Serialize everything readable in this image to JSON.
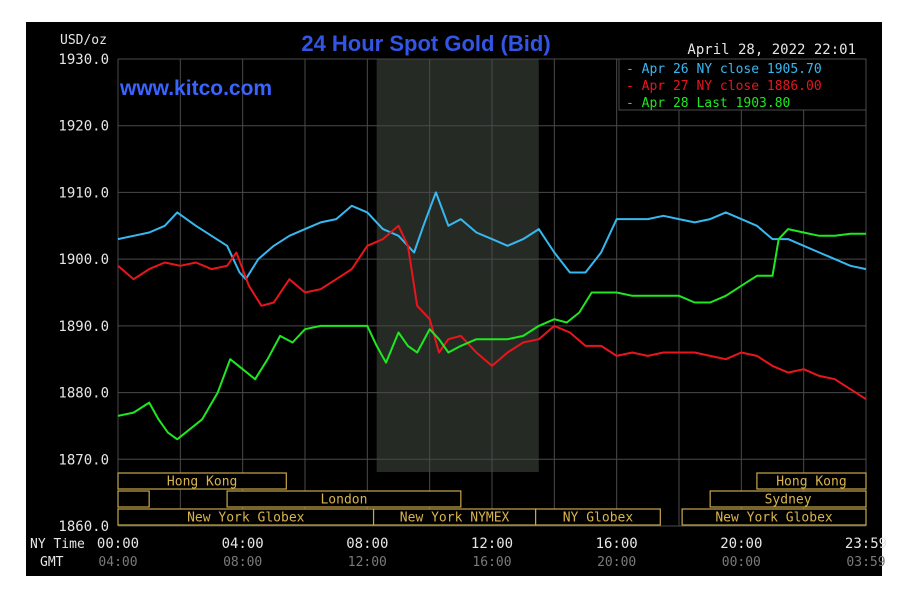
{
  "chart_data": {
    "type": "line",
    "title": "24 Hour Spot Gold (Bid)",
    "watermark": "www.kitco.com",
    "timestamp": "April 28, 2022 22:01",
    "y_unit_label": "USD/oz",
    "ylim": [
      1860,
      1930
    ],
    "yticks": [
      "1930.0",
      "1920.0",
      "1910.0",
      "1900.0",
      "1890.0",
      "1880.0",
      "1870.0",
      "1860.0"
    ],
    "x_row_labels": {
      "ny": "NY Time",
      "gmt": "GMT"
    },
    "xticks_ny": [
      "00:00",
      "04:00",
      "08:00",
      "12:00",
      "16:00",
      "20:00",
      "23:59"
    ],
    "xticks_gmt": [
      "04:00",
      "08:00",
      "12:00",
      "16:00",
      "20:00",
      "00:00",
      "03:59"
    ],
    "xlim": [
      0,
      24
    ],
    "grid": true,
    "legend_position": "top-right",
    "highlight_band_hours": [
      8.3,
      13.5
    ],
    "series": [
      {
        "name": "Apr 26 NY close 1905.70",
        "color": "#38b8f0",
        "x": [
          0,
          0.5,
          1,
          1.5,
          1.9,
          2.5,
          3,
          3.5,
          3.9,
          4.1,
          4.5,
          5,
          5.5,
          6,
          6.5,
          7,
          7.5,
          8,
          8.5,
          9,
          9.5,
          9.8,
          10.2,
          10.6,
          11,
          11.5,
          12,
          12.5,
          13,
          13.5,
          14,
          14.5,
          15,
          15.5,
          16,
          16.5,
          17,
          17.5,
          18,
          18.5,
          19,
          19.5,
          20,
          20.5,
          21,
          21.5,
          22,
          22.5,
          23,
          23.5,
          24
        ],
        "y": [
          1903,
          1903.5,
          1904,
          1905,
          1907,
          1905,
          1903.5,
          1902,
          1898,
          1897,
          1900,
          1902,
          1903.5,
          1904.5,
          1905.5,
          1906,
          1908,
          1907,
          1904.5,
          1903.5,
          1901,
          1905,
          1910,
          1905,
          1906,
          1904,
          1903,
          1902,
          1903,
          1904.5,
          1901,
          1898,
          1898,
          1901,
          1906,
          1906,
          1906,
          1906.5,
          1906,
          1905.5,
          1906,
          1907,
          1906,
          1905,
          1903,
          1903,
          1902,
          1901,
          1900,
          1899,
          1898.5
        ]
      },
      {
        "name": "Apr 27 NY close 1886.00",
        "color": "#e8161c",
        "x": [
          0,
          0.5,
          1,
          1.5,
          2,
          2.5,
          3,
          3.5,
          3.8,
          4.2,
          4.6,
          5,
          5.5,
          6,
          6.5,
          7,
          7.5,
          8,
          8.5,
          9,
          9.3,
          9.6,
          10,
          10.3,
          10.6,
          11,
          11.5,
          12,
          12.5,
          13,
          13.5,
          14,
          14.5,
          15,
          15.5,
          16,
          16.5,
          17,
          17.5,
          18,
          18.5,
          19,
          19.5,
          20,
          20.5,
          21,
          21.5,
          22,
          22.5,
          23,
          23.5,
          24
        ],
        "y": [
          1899,
          1897,
          1898.5,
          1899.5,
          1899,
          1899.5,
          1898.5,
          1899,
          1901,
          1896,
          1893,
          1893.5,
          1897,
          1895,
          1895.5,
          1897,
          1898.5,
          1902,
          1903,
          1905,
          1902,
          1893,
          1891,
          1886,
          1888,
          1888.5,
          1886,
          1884,
          1886,
          1887.5,
          1888,
          1890,
          1889,
          1887,
          1887,
          1885.5,
          1886,
          1885.5,
          1886,
          1886,
          1886,
          1885.5,
          1885,
          1886,
          1885.5,
          1884,
          1883,
          1883.5,
          1882.5,
          1882,
          1880.5,
          1879
        ]
      },
      {
        "name": "Apr 28 Last 1903.80",
        "color": "#1ee820",
        "x": [
          0,
          0.5,
          1,
          1.3,
          1.6,
          1.9,
          2.3,
          2.7,
          3.2,
          3.6,
          4,
          4.4,
          4.8,
          5.2,
          5.6,
          6,
          6.5,
          7,
          7.5,
          8,
          8.3,
          8.6,
          9,
          9.3,
          9.6,
          10,
          10.3,
          10.6,
          11,
          11.5,
          12,
          12.5,
          13,
          13.5,
          14,
          14.4,
          14.8,
          15.2,
          15.6,
          16,
          16.5,
          17,
          17.5,
          18,
          18.5,
          19,
          19.5,
          20,
          20.5,
          21,
          21.2,
          21.5,
          22,
          22.5,
          23,
          23.5,
          24
        ],
        "y": [
          1876.5,
          1877,
          1878.5,
          1876,
          1874,
          1873,
          1874.5,
          1876,
          1880,
          1885,
          1883.5,
          1882,
          1885,
          1888.5,
          1887.5,
          1889.5,
          1890,
          1890,
          1890,
          1890,
          1887,
          1884.5,
          1889,
          1887,
          1886,
          1889.5,
          1888,
          1886,
          1887,
          1888,
          1888,
          1888,
          1888.5,
          1890,
          1891,
          1890.5,
          1892,
          1895,
          1895,
          1895,
          1894.5,
          1894.5,
          1894.5,
          1894.5,
          1893.5,
          1893.5,
          1894.5,
          1896,
          1897.5,
          1897.5,
          1903,
          1904.5,
          1904,
          1903.5,
          1903.5,
          1903.8,
          1903.8
        ]
      }
    ],
    "sessions": [
      {
        "label": "Hong Kong",
        "row": 0,
        "start_hour": 0,
        "end_hour": 5.4,
        "show_label": true
      },
      {
        "label": "",
        "row": 1,
        "start_hour": 0,
        "end_hour": 1.0,
        "show_label": false
      },
      {
        "label": "London",
        "row": 1,
        "start_hour": 3.5,
        "end_hour": 11,
        "show_label": true
      },
      {
        "label": "New York Globex",
        "row": 2,
        "start_hour": 0,
        "end_hour": 8.2,
        "show_label": true
      },
      {
        "label": "New York NYMEX",
        "row": 2,
        "start_hour": 8.2,
        "end_hour": 13.4,
        "show_label": true
      },
      {
        "label": "NY Globex",
        "row": 2,
        "start_hour": 13.4,
        "end_hour": 17.4,
        "show_label": true
      },
      {
        "label": "Hong Kong",
        "row": 0,
        "start_hour": 20.5,
        "end_hour": 24,
        "show_label": true
      },
      {
        "label": "Sydney",
        "row": 1,
        "start_hour": 19.0,
        "end_hour": 24,
        "show_label": true
      },
      {
        "label": "New York Globex",
        "row": 2,
        "start_hour": 18.1,
        "end_hour": 24,
        "show_label": true
      }
    ]
  }
}
